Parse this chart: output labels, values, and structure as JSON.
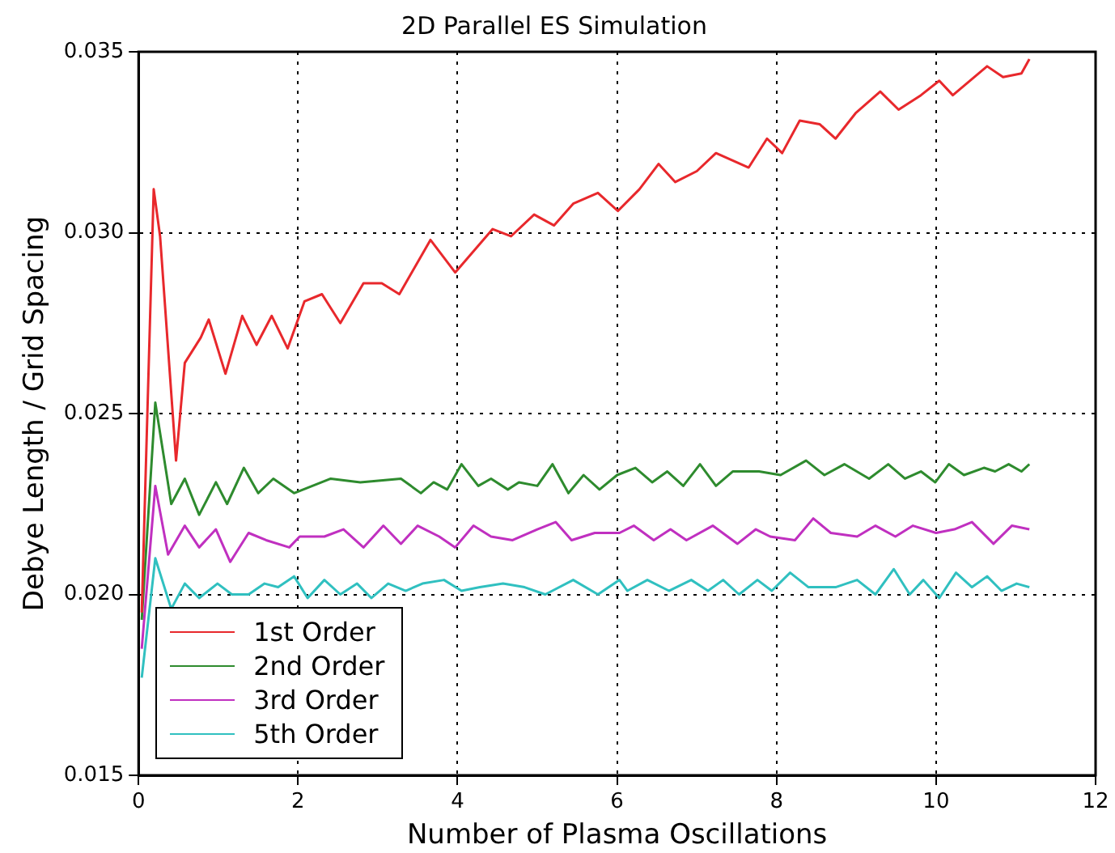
{
  "chart_data": {
    "type": "line",
    "title": "2D Parallel ES Simulation",
    "xlabel": "Number of Plasma Oscillations",
    "ylabel": "Debye Length / Grid Spacing",
    "xlim": [
      0,
      12
    ],
    "xticks": [
      0,
      2,
      4,
      6,
      8,
      10,
      12
    ],
    "ylim": [
      0.015,
      0.035
    ],
    "yticks": [
      0.015,
      {
        "value": 0.02,
        "label": "0.020"
      },
      0.025,
      {
        "value": 0.03,
        "label": "0.030"
      },
      0.035
    ],
    "grid": true,
    "legend": "bottom left",
    "marker": "none",
    "line_style": "solid",
    "series": [
      {
        "name": "1st Order",
        "color": "#e8282c",
        "x": [
          0.04,
          0.19,
          0.27,
          0.47,
          0.58,
          0.78,
          0.88,
          1.09,
          1.3,
          1.48,
          1.67,
          1.87,
          2.08,
          2.3,
          2.53,
          2.82,
          3.05,
          3.27,
          3.66,
          3.97,
          4.44,
          4.67,
          4.96,
          5.21,
          5.45,
          5.76,
          6.01,
          6.28,
          6.52,
          6.73,
          7.0,
          7.24,
          7.65,
          7.88,
          8.07,
          8.29,
          8.54,
          8.74,
          8.99,
          9.3,
          9.53,
          9.81,
          10.04,
          10.21,
          10.64,
          10.84,
          11.07,
          11.17
        ],
        "values": [
          0.0195,
          0.0312,
          0.0299,
          0.0237,
          0.0264,
          0.0271,
          0.0276,
          0.0261,
          0.0277,
          0.0269,
          0.0277,
          0.0268,
          0.0281,
          0.0283,
          0.0275,
          0.0286,
          0.0286,
          0.0283,
          0.0298,
          0.0289,
          0.0301,
          0.0299,
          0.0305,
          0.0302,
          0.0308,
          0.0311,
          0.0306,
          0.0312,
          0.0319,
          0.0314,
          0.0317,
          0.0322,
          0.0318,
          0.0326,
          0.0322,
          0.0331,
          0.033,
          0.0326,
          0.0333,
          0.0339,
          0.0334,
          0.0338,
          0.0342,
          0.0338,
          0.0346,
          0.0343,
          0.0344,
          0.0348
        ]
      },
      {
        "name": "2nd Order",
        "color": "#2e8b2e",
        "x": [
          0.04,
          0.21,
          0.41,
          0.58,
          0.76,
          0.97,
          1.11,
          1.32,
          1.5,
          1.69,
          1.95,
          2.41,
          2.78,
          3.29,
          3.54,
          3.7,
          3.87,
          4.05,
          4.26,
          4.42,
          4.63,
          4.77,
          5.0,
          5.19,
          5.39,
          5.58,
          5.78,
          6.0,
          6.23,
          6.44,
          6.63,
          6.83,
          7.04,
          7.24,
          7.45,
          7.78,
          8.05,
          8.37,
          8.6,
          8.85,
          9.16,
          9.4,
          9.61,
          9.81,
          9.99,
          10.16,
          10.35,
          10.6,
          10.74,
          10.91,
          11.07,
          11.17
        ],
        "values": [
          0.0193,
          0.0253,
          0.0225,
          0.0232,
          0.0222,
          0.0231,
          0.0225,
          0.0235,
          0.0228,
          0.0232,
          0.0228,
          0.0232,
          0.0231,
          0.0232,
          0.0228,
          0.0231,
          0.0229,
          0.0236,
          0.023,
          0.0232,
          0.0229,
          0.0231,
          0.023,
          0.0236,
          0.0228,
          0.0233,
          0.0229,
          0.0233,
          0.0235,
          0.0231,
          0.0234,
          0.023,
          0.0236,
          0.023,
          0.0234,
          0.0234,
          0.0233,
          0.0237,
          0.0233,
          0.0236,
          0.0232,
          0.0236,
          0.0232,
          0.0234,
          0.0231,
          0.0236,
          0.0233,
          0.0235,
          0.0234,
          0.0236,
          0.0234,
          0.0236
        ]
      },
      {
        "name": "3rd Order",
        "color": "#c030c0",
        "x": [
          0.04,
          0.21,
          0.37,
          0.58,
          0.76,
          0.97,
          1.15,
          1.38,
          1.6,
          1.89,
          2.02,
          2.33,
          2.57,
          2.82,
          3.07,
          3.29,
          3.5,
          3.77,
          3.97,
          4.2,
          4.42,
          4.69,
          5.0,
          5.23,
          5.43,
          5.72,
          6.03,
          6.21,
          6.46,
          6.67,
          6.87,
          7.2,
          7.51,
          7.74,
          7.92,
          8.23,
          8.46,
          8.68,
          9.01,
          9.24,
          9.49,
          9.71,
          10.0,
          10.23,
          10.45,
          10.72,
          10.95,
          11.17
        ],
        "values": [
          0.0185,
          0.023,
          0.0211,
          0.0219,
          0.0213,
          0.0218,
          0.0209,
          0.0217,
          0.0215,
          0.0213,
          0.0216,
          0.0216,
          0.0218,
          0.0213,
          0.0219,
          0.0214,
          0.0219,
          0.0216,
          0.0213,
          0.0219,
          0.0216,
          0.0215,
          0.0218,
          0.022,
          0.0215,
          0.0217,
          0.0217,
          0.0219,
          0.0215,
          0.0218,
          0.0215,
          0.0219,
          0.0214,
          0.0218,
          0.0216,
          0.0215,
          0.0221,
          0.0217,
          0.0216,
          0.0219,
          0.0216,
          0.0219,
          0.0217,
          0.0218,
          0.022,
          0.0214,
          0.0219,
          0.0218
        ]
      },
      {
        "name": "5th Order",
        "color": "#30c0c0",
        "x": [
          0.04,
          0.21,
          0.41,
          0.58,
          0.76,
          0.99,
          1.17,
          1.38,
          1.58,
          1.75,
          1.95,
          2.12,
          2.33,
          2.53,
          2.74,
          2.92,
          3.13,
          3.35,
          3.56,
          3.83,
          4.05,
          4.28,
          4.57,
          4.84,
          5.1,
          5.45,
          5.76,
          6.03,
          6.13,
          6.38,
          6.65,
          6.93,
          7.14,
          7.33,
          7.53,
          7.76,
          7.94,
          8.17,
          8.4,
          8.74,
          9.01,
          9.24,
          9.47,
          9.67,
          9.84,
          10.04,
          10.25,
          10.45,
          10.64,
          10.82,
          11.01,
          11.17
        ],
        "values": [
          0.0177,
          0.021,
          0.0196,
          0.0203,
          0.0199,
          0.0203,
          0.02,
          0.02,
          0.0203,
          0.0202,
          0.0205,
          0.0199,
          0.0204,
          0.02,
          0.0203,
          0.0199,
          0.0203,
          0.0201,
          0.0203,
          0.0204,
          0.0201,
          0.0202,
          0.0203,
          0.0202,
          0.02,
          0.0204,
          0.02,
          0.0204,
          0.0201,
          0.0204,
          0.0201,
          0.0204,
          0.0201,
          0.0204,
          0.02,
          0.0204,
          0.0201,
          0.0206,
          0.0202,
          0.0202,
          0.0204,
          0.02,
          0.0207,
          0.02,
          0.0204,
          0.0199,
          0.0206,
          0.0202,
          0.0205,
          0.0201,
          0.0203,
          0.0202
        ]
      }
    ]
  }
}
